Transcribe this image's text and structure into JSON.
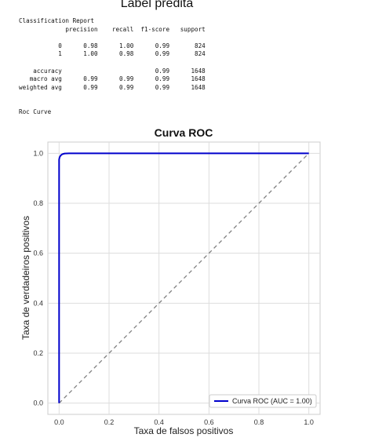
{
  "header": {
    "title": "Label predita"
  },
  "report": {
    "title": "Classification Report",
    "columns": [
      "precision",
      "recall",
      "f1-score",
      "support"
    ],
    "rows": [
      {
        "label": "0",
        "precision": "0.98",
        "recall": "1.00",
        "f1": "0.99",
        "support": "824"
      },
      {
        "label": "1",
        "precision": "1.00",
        "recall": "0.98",
        "f1": "0.99",
        "support": "824"
      }
    ],
    "summary": [
      {
        "label": "accuracy",
        "precision": "",
        "recall": "",
        "f1": "0.99",
        "support": "1648"
      },
      {
        "label": "macro avg",
        "precision": "0.99",
        "recall": "0.99",
        "f1": "0.99",
        "support": "1648"
      },
      {
        "label": "weighted avg",
        "precision": "0.99",
        "recall": "0.99",
        "f1": "0.99",
        "support": "1648"
      }
    ]
  },
  "roc_section_label": "Roc Curve",
  "chart_data": {
    "type": "line",
    "title": "Curva ROC",
    "xlabel": "Taxa de falsos positivos",
    "ylabel": "Taxa de verdadeiros positivos",
    "xlim": [
      0.0,
      1.0
    ],
    "ylim": [
      0.0,
      1.0
    ],
    "xticks": [
      "0.0",
      "0.2",
      "0.4",
      "0.6",
      "0.8",
      "1.0"
    ],
    "yticks": [
      "0.0",
      "0.2",
      "0.4",
      "0.6",
      "0.8",
      "1.0"
    ],
    "grid": true,
    "legend_position": "bottom-right",
    "series": [
      {
        "name": "Curva ROC (AUC = 1.00)",
        "color": "#0000cc",
        "style": "solid",
        "x": [
          0.0,
          0.0,
          0.002,
          0.006,
          0.012,
          0.022,
          0.04,
          1.0
        ],
        "y": [
          0.0,
          0.975,
          0.984,
          0.991,
          0.996,
          0.999,
          1.0,
          1.0
        ]
      },
      {
        "color": "#808080",
        "style": "dashed",
        "x": [
          0.0,
          1.0
        ],
        "y": [
          0.0,
          1.0
        ]
      }
    ]
  }
}
